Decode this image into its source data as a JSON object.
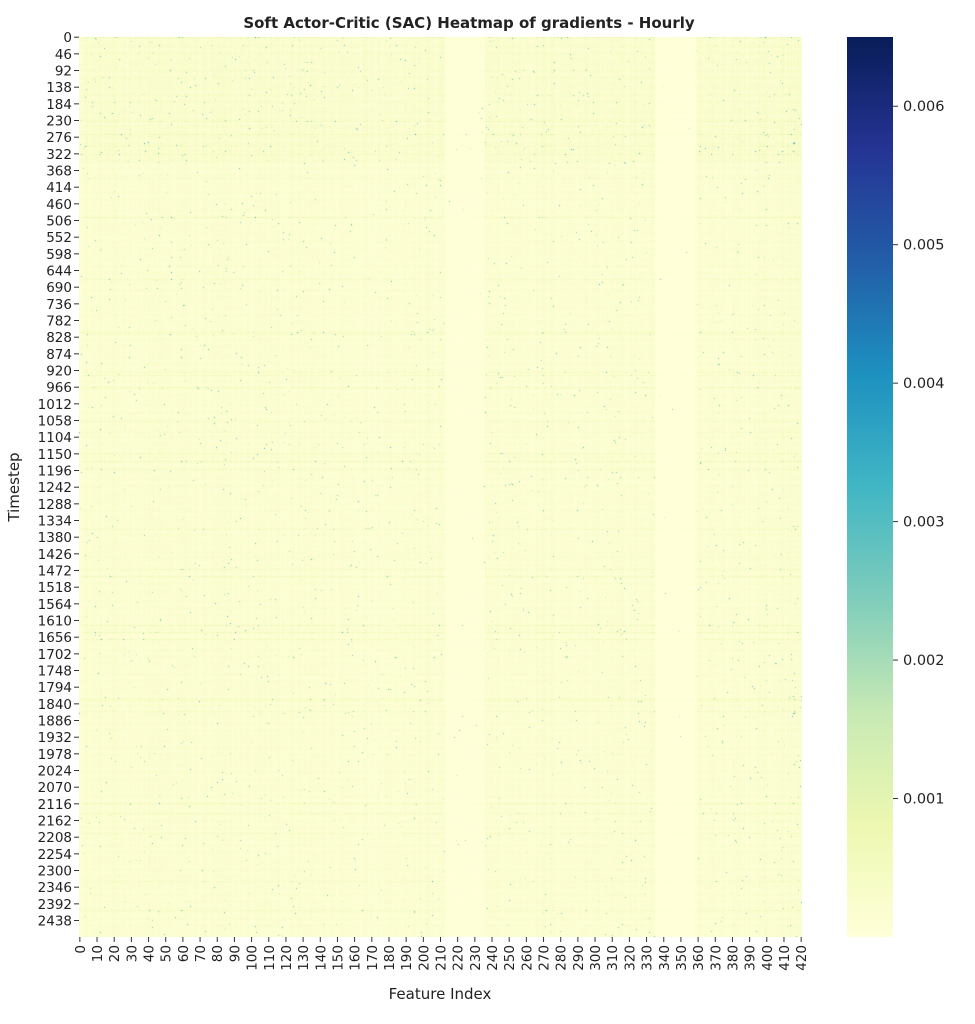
{
  "chart_data": {
    "type": "heatmap",
    "title": "Soft Actor-Critic (SAC) Heatmap of gradients - Hourly",
    "xlabel": "Feature Index",
    "ylabel": "Timestep",
    "x_tick_labels": [
      "0",
      "10",
      "20",
      "30",
      "40",
      "50",
      "60",
      "70",
      "80",
      "90",
      "100",
      "110",
      "120",
      "130",
      "140",
      "150",
      "160",
      "170",
      "180",
      "190",
      "200",
      "210",
      "220",
      "230",
      "240",
      "250",
      "260",
      "270",
      "280",
      "290",
      "300",
      "310",
      "320",
      "330",
      "340",
      "350",
      "360",
      "370",
      "380",
      "390",
      "400",
      "410",
      "420"
    ],
    "y_tick_labels": [
      "0",
      "46",
      "92",
      "138",
      "184",
      "230",
      "276",
      "322",
      "368",
      "414",
      "460",
      "506",
      "552",
      "598",
      "644",
      "690",
      "736",
      "782",
      "828",
      "874",
      "920",
      "966",
      "1012",
      "1058",
      "1104",
      "1150",
      "1196",
      "1242",
      "1288",
      "1334",
      "1380",
      "1426",
      "1472",
      "1518",
      "1564",
      "1610",
      "1656",
      "1702",
      "1748",
      "1794",
      "1840",
      "1886",
      "1932",
      "1978",
      "2024",
      "2070",
      "2116",
      "2162",
      "2208",
      "2254",
      "2300",
      "2346",
      "2392",
      "2438"
    ],
    "x_range": [
      0,
      421
    ],
    "y_range": [
      0,
      2484
    ],
    "colormap": "YlGnBu",
    "colorbar": {
      "range": [
        0.0,
        0.0065
      ],
      "tick_values": [
        0.001,
        0.002,
        0.003,
        0.004,
        0.005,
        0.006
      ],
      "tick_labels": [
        "0.001",
        "0.002",
        "0.003",
        "0.004",
        "0.005",
        "0.006"
      ]
    },
    "grid": false,
    "typical_value_range": [
      0.0,
      0.0015
    ],
    "colors": {
      "low": "#ffffd9",
      "mid": "#7fcdbb",
      "high": "#081d58"
    }
  }
}
